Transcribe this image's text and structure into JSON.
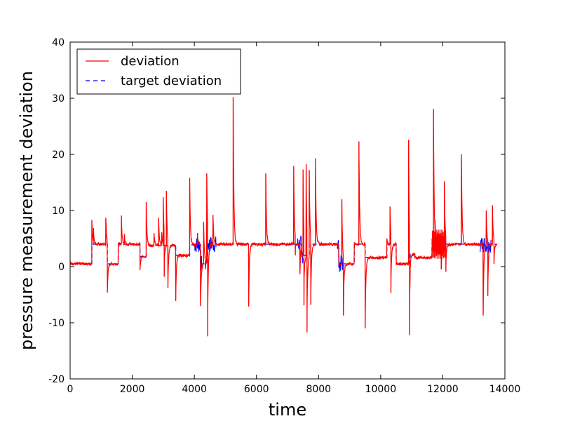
{
  "chart_data": {
    "type": "line",
    "title": "",
    "xlabel": "time",
    "ylabel": "pressure measurement deviation",
    "xlim": [
      0,
      14000
    ],
    "ylim": [
      -20,
      40
    ],
    "xticks": [
      0,
      2000,
      4000,
      6000,
      8000,
      10000,
      12000,
      14000
    ],
    "yticks": [
      -20,
      -10,
      0,
      10,
      20,
      30,
      40
    ],
    "grid": false,
    "legend_position": "top-left",
    "colors": {
      "deviation": "#ff0000",
      "target": "#0000ff"
    },
    "target_levels": [
      {
        "start": 0,
        "end": 700,
        "value": 0.5
      },
      {
        "start": 700,
        "end": 1200,
        "value": 4.0
      },
      {
        "start": 1200,
        "end": 1550,
        "value": 0.5
      },
      {
        "start": 1550,
        "end": 2250,
        "value": 4.0
      },
      {
        "start": 2250,
        "end": 2450,
        "value": 1.8
      },
      {
        "start": 2450,
        "end": 3400,
        "value": 3.8
      },
      {
        "start": 3400,
        "end": 3850,
        "value": 2.0
      },
      {
        "start": 3850,
        "end": 4200,
        "value": 3.9
      },
      {
        "start": 4200,
        "end": 4400,
        "value": 0.5
      },
      {
        "start": 4400,
        "end": 7450,
        "value": 4.0
      },
      {
        "start": 7450,
        "end": 7700,
        "value": 2.0
      },
      {
        "start": 7700,
        "end": 8650,
        "value": 4.0
      },
      {
        "start": 8650,
        "end": 9150,
        "value": 0.5
      },
      {
        "start": 9150,
        "end": 9500,
        "value": 4.0
      },
      {
        "start": 9500,
        "end": 10200,
        "value": 1.6
      },
      {
        "start": 10200,
        "end": 10500,
        "value": 4.0
      },
      {
        "start": 10500,
        "end": 10950,
        "value": 0.5
      },
      {
        "start": 10950,
        "end": 11100,
        "value": 2.2
      },
      {
        "start": 11100,
        "end": 11650,
        "value": 1.6
      },
      {
        "start": 11650,
        "end": 13700,
        "value": 4.0
      }
    ],
    "deviation_events": [
      {
        "t": 700,
        "value": 8.3
      },
      {
        "t": 750,
        "value": 6.5
      },
      {
        "t": 1150,
        "value": 8.7
      },
      {
        "t": 1200,
        "value": -4.6
      },
      {
        "t": 1650,
        "value": 9.1
      },
      {
        "t": 1750,
        "value": 5.8
      },
      {
        "t": 2250,
        "value": -0.6
      },
      {
        "t": 2450,
        "value": 11.5
      },
      {
        "t": 2700,
        "value": 6.0
      },
      {
        "t": 2850,
        "value": 8.7
      },
      {
        "t": 2950,
        "value": 6.0
      },
      {
        "t": 3000,
        "value": 12.0
      },
      {
        "t": 3030,
        "value": -1.8
      },
      {
        "t": 3100,
        "value": 13.5
      },
      {
        "t": 3150,
        "value": -3.8
      },
      {
        "t": 3400,
        "value": -6.1
      },
      {
        "t": 3850,
        "value": 15.8
      },
      {
        "t": 4100,
        "value": 6.0
      },
      {
        "t": 4200,
        "value": -7.0
      },
      {
        "t": 4300,
        "value": 8.0
      },
      {
        "t": 4400,
        "value": 16.6
      },
      {
        "t": 4430,
        "value": -12.4
      },
      {
        "t": 4600,
        "value": 9.2
      },
      {
        "t": 5250,
        "value": 30.2
      },
      {
        "t": 5750,
        "value": -7.1
      },
      {
        "t": 6300,
        "value": 16.6
      },
      {
        "t": 7200,
        "value": 17.8
      },
      {
        "t": 7250,
        "value": 2.0
      },
      {
        "t": 7400,
        "value": -1.2
      },
      {
        "t": 7500,
        "value": 17.3
      },
      {
        "t": 7530,
        "value": -6.9
      },
      {
        "t": 7600,
        "value": 18.3
      },
      {
        "t": 7630,
        "value": -11.7
      },
      {
        "t": 7700,
        "value": 17.2
      },
      {
        "t": 7750,
        "value": -6.8
      },
      {
        "t": 7900,
        "value": 19.3
      },
      {
        "t": 8750,
        "value": 12.0
      },
      {
        "t": 8800,
        "value": -8.7
      },
      {
        "t": 9300,
        "value": 22.3
      },
      {
        "t": 9500,
        "value": -11.0
      },
      {
        "t": 10200,
        "value": 5.0
      },
      {
        "t": 10300,
        "value": 10.7
      },
      {
        "t": 10330,
        "value": -4.7
      },
      {
        "t": 10900,
        "value": 22.6
      },
      {
        "t": 10930,
        "value": -12.2
      },
      {
        "t": 11700,
        "value": 28.1
      },
      {
        "t": 11750,
        "value": 6.0
      },
      {
        "t": 11850,
        "value": 6.5
      },
      {
        "t": 11950,
        "value": -0.5
      },
      {
        "t": 12050,
        "value": 15.2
      },
      {
        "t": 12100,
        "value": -0.9
      },
      {
        "t": 12600,
        "value": 20.0
      },
      {
        "t": 13300,
        "value": -8.7
      },
      {
        "t": 13400,
        "value": 10.0
      },
      {
        "t": 13450,
        "value": -5.2
      },
      {
        "t": 13600,
        "value": 10.8
      },
      {
        "t": 13650,
        "value": 0.5
      }
    ],
    "series": [
      {
        "name": "deviation",
        "style": "solid",
        "color": "#ff0000"
      },
      {
        "name": "target deviation",
        "style": "dashed",
        "color": "#0000ff"
      }
    ]
  }
}
